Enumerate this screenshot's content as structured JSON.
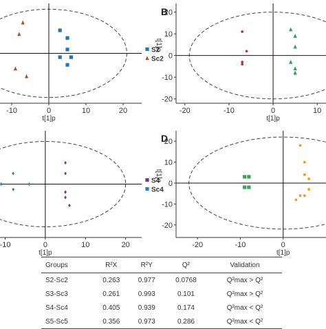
{
  "chart_data": [
    {
      "type": "scatter",
      "panel": "A",
      "xlabel": "t[1]p",
      "ylabel": "",
      "xlim": [
        -15,
        25
      ],
      "ylim": [
        -13,
        13
      ],
      "xticks": [
        -10,
        0,
        10,
        20
      ],
      "yticks": [],
      "ellipse": {
        "rx": 21,
        "ry": 11.5
      },
      "legend": "right",
      "series": [
        {
          "name": "S2",
          "color": "#1f77b4",
          "shape": "square",
          "points": [
            [
              3,
              6
            ],
            [
              5,
              4
            ],
            [
              5,
              1
            ],
            [
              6,
              -1
            ],
            [
              5,
              -3
            ],
            [
              3,
              -1
            ]
          ]
        },
        {
          "name": "Sc2",
          "color": "#a0522d",
          "shape": "triangle",
          "points": [
            [
              -7,
              8
            ],
            [
              -8,
              5
            ],
            [
              -6,
              -6
            ],
            [
              -9,
              -4
            ]
          ]
        }
      ]
    },
    {
      "type": "scatter",
      "panel": "B",
      "xlabel": "t[1]p",
      "ylabel": "t[1]o",
      "xlim": [
        -22,
        12
      ],
      "ylim": [
        -22,
        24
      ],
      "xticks": [
        -20,
        -10,
        0,
        10
      ],
      "yticks": [
        -20,
        -10,
        0,
        10,
        20
      ],
      "ellipse": {
        "rx": 19,
        "ry": 20
      },
      "series": [
        {
          "name": "",
          "color": "#c0392b",
          "shape": "circle",
          "points": [
            [
              -7,
              11
            ],
            [
              -6,
              2
            ],
            [
              -7,
              -3
            ],
            [
              -7,
              -4
            ]
          ]
        },
        {
          "name": "",
          "color": "#2ca05a",
          "shape": "triangle",
          "points": [
            [
              4,
              12
            ],
            [
              5,
              9
            ],
            [
              5,
              4
            ],
            [
              4,
              -3
            ],
            [
              5,
              -6
            ],
            [
              5,
              -8
            ]
          ]
        }
      ]
    },
    {
      "type": "scatter",
      "panel": "C",
      "xlabel": "t[1]p",
      "ylabel": "",
      "xlim": [
        -13,
        24
      ],
      "ylim": [
        -20,
        20
      ],
      "xticks": [
        -10,
        0,
        10,
        20
      ],
      "yticks": [],
      "ellipse": {
        "rx": 20,
        "ry": 16
      },
      "legend": "right",
      "series": [
        {
          "name": "S4",
          "color": "#7b3294",
          "shape": "diamond",
          "points": [
            [
              5,
              8
            ],
            [
              5,
              4
            ],
            [
              5,
              -3
            ],
            [
              5,
              -5
            ],
            [
              6,
              -8
            ],
            [
              5,
              -3
            ]
          ]
        },
        {
          "name": "Sc4",
          "color": "#2980b9",
          "shape": "diamond",
          "points": [
            [
              -8,
              4
            ],
            [
              -11,
              0
            ],
            [
              -8,
              -2
            ],
            [
              -4,
              0
            ]
          ]
        }
      ]
    },
    {
      "type": "scatter",
      "panel": "D",
      "xlabel": "t[1]p",
      "ylabel": "t[1]o",
      "xlim": [
        -25,
        10
      ],
      "ylim": [
        -26,
        25
      ],
      "xticks": [
        -20,
        -10,
        0
      ],
      "yticks": [
        -20,
        -10,
        0,
        10,
        20
      ],
      "ellipse": {
        "rx": 22,
        "ry": 22
      },
      "series": [
        {
          "name": "",
          "color": "#3aa655",
          "shape": "square",
          "points": [
            [
              -9,
              3
            ],
            [
              -8,
              3
            ],
            [
              -9,
              -2
            ],
            [
              -8,
              -2
            ]
          ]
        },
        {
          "name": "",
          "color": "#f39c12",
          "shape": "circle",
          "points": [
            [
              4,
              18
            ],
            [
              5,
              10
            ],
            [
              5,
              4
            ],
            [
              6,
              2
            ],
            [
              6,
              -3
            ],
            [
              5,
              -6
            ],
            [
              3,
              -8
            ],
            [
              4,
              -6
            ]
          ]
        }
      ]
    }
  ],
  "panel_labels": [
    "B",
    "D"
  ],
  "table": {
    "headers": [
      "Groups",
      "R²X",
      "R²Y",
      "Q²",
      "Validation"
    ],
    "rows": [
      [
        "S2-Sc2",
        "0.263",
        "0.977",
        "0.0768",
        "Q²max > Q²"
      ],
      [
        "S3-Sc3",
        "0.261",
        "0.993",
        "0.101",
        "Q²max > Q²"
      ],
      [
        "S4-Sc4",
        "0.405",
        "0.939",
        "0.174",
        "Q²max < Q²"
      ],
      [
        "S5-Sc5",
        "0.356",
        "0.973",
        "0.286",
        "Q²max < Q²"
      ]
    ]
  }
}
